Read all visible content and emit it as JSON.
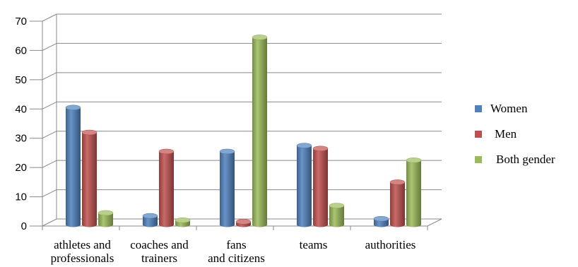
{
  "chart_data": {
    "type": "bar",
    "categories": [
      [
        "athletes and",
        "professionals"
      ],
      [
        "coaches and",
        "trainers"
      ],
      [
        "fans",
        "and citizens"
      ],
      [
        "teams"
      ],
      [
        "authorities"
      ]
    ],
    "series": [
      {
        "name": "Women",
        "values": [
          40,
          3,
          25,
          27,
          2
        ],
        "color": "#4f81bd"
      },
      {
        "name": "Men",
        "values": [
          31.5,
          25,
          1,
          26,
          14.5
        ],
        "color": "#c0504d"
      },
      {
        "name": "Both gender",
        "values": [
          4,
          1.5,
          64,
          6.5,
          22
        ],
        "color": "#9bbb59"
      }
    ],
    "ylim": [
      0,
      70
    ],
    "yticks": [
      0,
      10,
      20,
      30,
      40,
      50,
      60,
      70
    ],
    "grid": true,
    "legend_position": "right",
    "title": "",
    "xlabel": "",
    "ylabel": ""
  }
}
